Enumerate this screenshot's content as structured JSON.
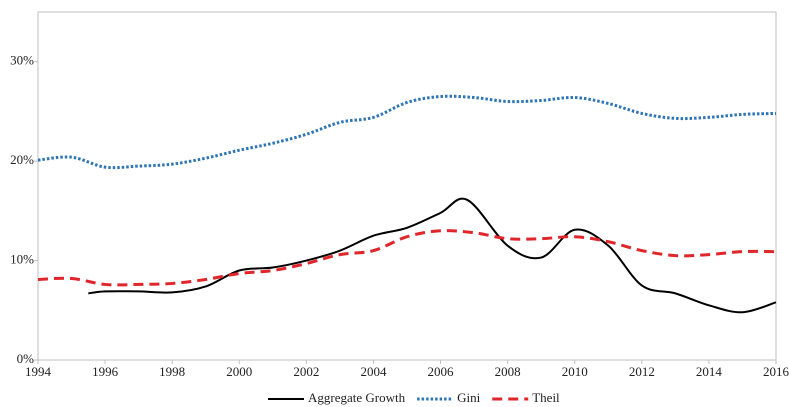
{
  "chart_data": {
    "type": "line",
    "xlim": [
      1994,
      2016
    ],
    "xticks": [
      1994,
      1996,
      1998,
      2000,
      2002,
      2004,
      2006,
      2008,
      2010,
      2012,
      2014,
      2016
    ],
    "ylim": [
      0,
      35
    ],
    "yticks": [
      {
        "value": 0,
        "label": "0%"
      },
      {
        "value": 10,
        "label": "10%"
      },
      {
        "value": 20,
        "label": "20%"
      },
      {
        "value": 30,
        "label": "30%"
      }
    ],
    "grid": false,
    "legend": "bottom",
    "series": [
      {
        "name": "Aggregate Growth",
        "color": "#000000",
        "style": "solid",
        "x": [
          1995.5,
          1996,
          1997,
          1998,
          1999,
          2000,
          2001,
          2002,
          2003,
          2004,
          2005,
          2006,
          2006.8,
          2008,
          2009,
          2010,
          2011,
          2012,
          2013,
          2014,
          2015,
          2016
        ],
        "values": [
          6.7,
          6.9,
          6.9,
          6.8,
          7.4,
          9.0,
          9.3,
          10.0,
          11.0,
          12.5,
          13.3,
          14.8,
          16.1,
          11.5,
          10.3,
          13.1,
          11.5,
          7.5,
          6.7,
          5.5,
          4.8,
          5.8
        ]
      },
      {
        "name": "Gini",
        "color": "#2e75b6",
        "style": "dotted",
        "x": [
          1994,
          1995,
          1996,
          1997,
          1998,
          1999,
          2000,
          2001,
          2002,
          2003,
          2004,
          2005,
          2006,
          2007,
          2008,
          2009,
          2010,
          2011,
          2012,
          2013,
          2014,
          2015,
          2016
        ],
        "values": [
          20.1,
          20.4,
          19.4,
          19.5,
          19.7,
          20.3,
          21.1,
          21.8,
          22.7,
          23.9,
          24.4,
          25.9,
          26.5,
          26.4,
          26.0,
          26.1,
          26.4,
          25.8,
          24.8,
          24.3,
          24.4,
          24.7,
          24.8
        ]
      },
      {
        "name": "Theil",
        "color": "#e0262b",
        "style": "dashed",
        "x": [
          1994,
          1995,
          1996,
          1997,
          1998,
          1999,
          2000,
          2001,
          2002,
          2003,
          2004,
          2005,
          2006,
          2007,
          2008,
          2009,
          2010,
          2011,
          2012,
          2013,
          2014,
          2015,
          2016
        ],
        "values": [
          8.1,
          8.2,
          7.6,
          7.6,
          7.7,
          8.1,
          8.7,
          9.0,
          9.7,
          10.6,
          11.0,
          12.4,
          13.0,
          12.8,
          12.2,
          12.2,
          12.4,
          11.9,
          11.0,
          10.5,
          10.6,
          10.9,
          10.9
        ]
      }
    ]
  }
}
